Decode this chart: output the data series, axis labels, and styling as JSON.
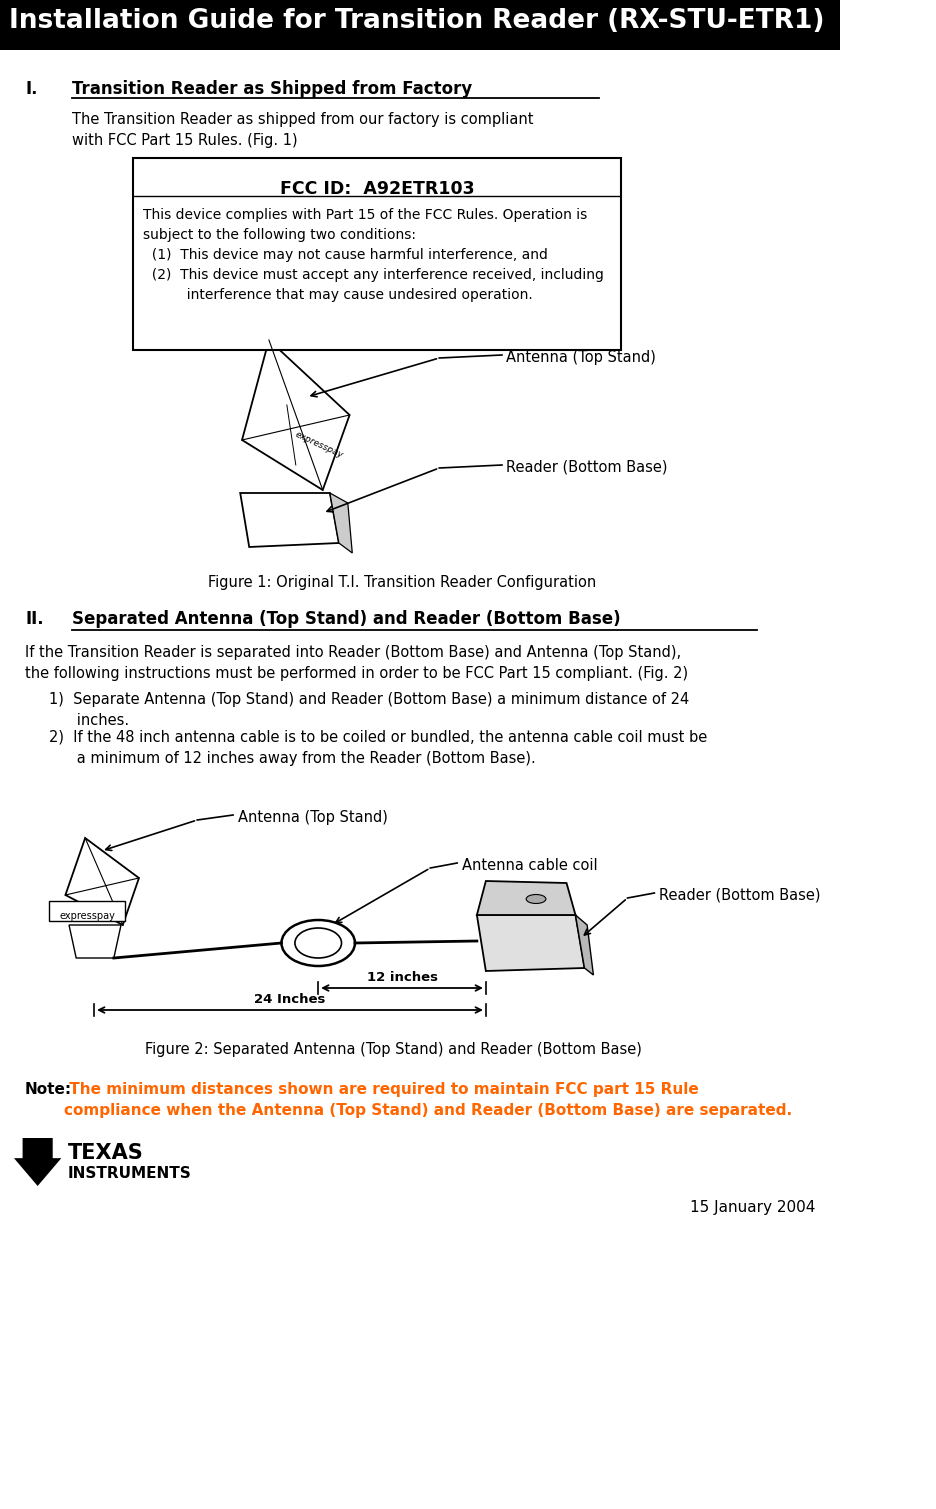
{
  "title": "Installation Guide for Transition Reader (RX-STU-ETR1)",
  "section1_title": "Transition Reader as Shipped from Factory",
  "section1_body": "The Transition Reader as shipped from our factory is compliant\nwith FCC Part 15 Rules. (Fig. 1)",
  "fcc_box_title": "FCC ID:  A92ETR103",
  "fig1_caption": "Figure 1: Original T.I. Transition Reader Configuration",
  "section2_title": "Separated Antenna (Top Stand) and Reader (Bottom Base)",
  "fig2_caption": "Figure 2: Separated Antenna (Top Stand) and Reader (Bottom Base)",
  "note_color": "#FF6600",
  "date": "15 January 2004",
  "bg_color": "#ffffff"
}
